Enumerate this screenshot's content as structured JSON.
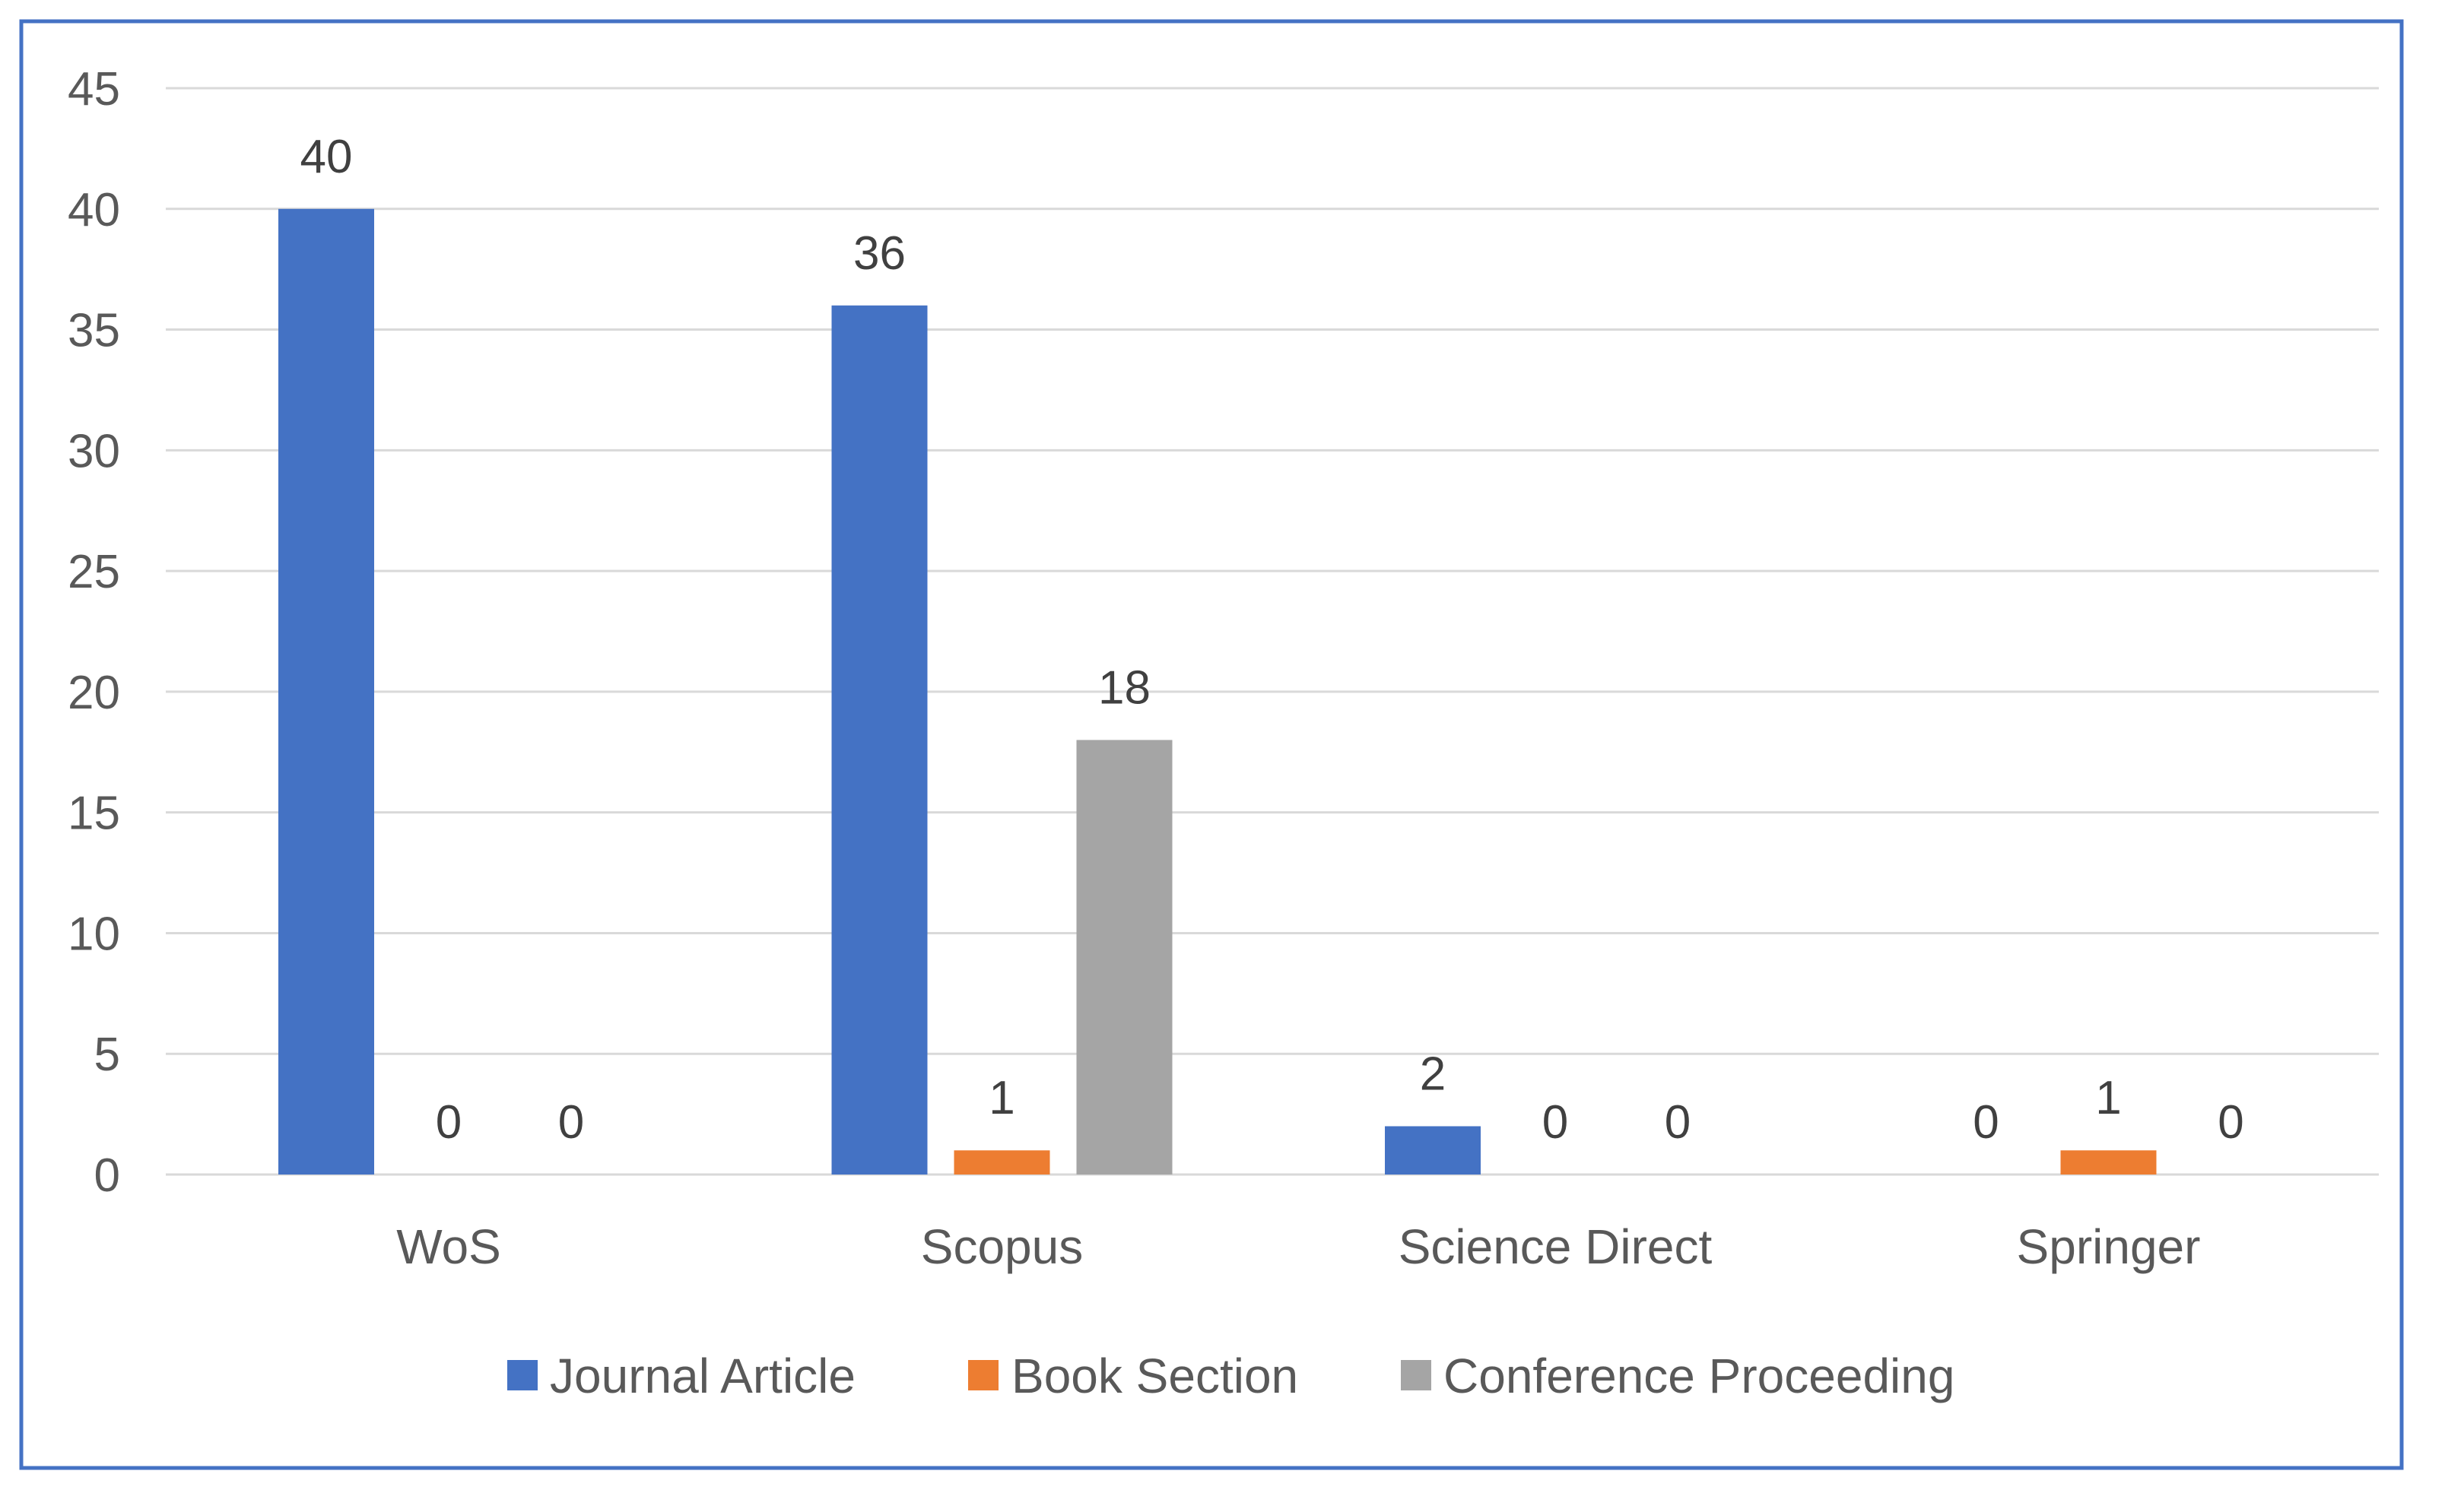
{
  "chart_data": {
    "type": "bar",
    "title": "",
    "xlabel": "",
    "ylabel": "",
    "categories": [
      "WoS",
      "Scopus",
      "Science Direct",
      "Springer"
    ],
    "series": [
      {
        "name": "Journal Article",
        "color": "#4472c4",
        "values": [
          40,
          36,
          2,
          0
        ]
      },
      {
        "name": "Book Section",
        "color": "#ed7d31",
        "values": [
          0,
          1,
          0,
          1
        ]
      },
      {
        "name": "Conference Proceeding",
        "color": "#a5a5a5",
        "values": [
          0,
          18,
          0,
          0
        ]
      }
    ],
    "ylim": [
      0,
      45
    ],
    "yticks": [
      0,
      5,
      10,
      15,
      20,
      25,
      30,
      35,
      40,
      45
    ],
    "grid": true,
    "legend_position": "bottom",
    "data_labels": true
  }
}
